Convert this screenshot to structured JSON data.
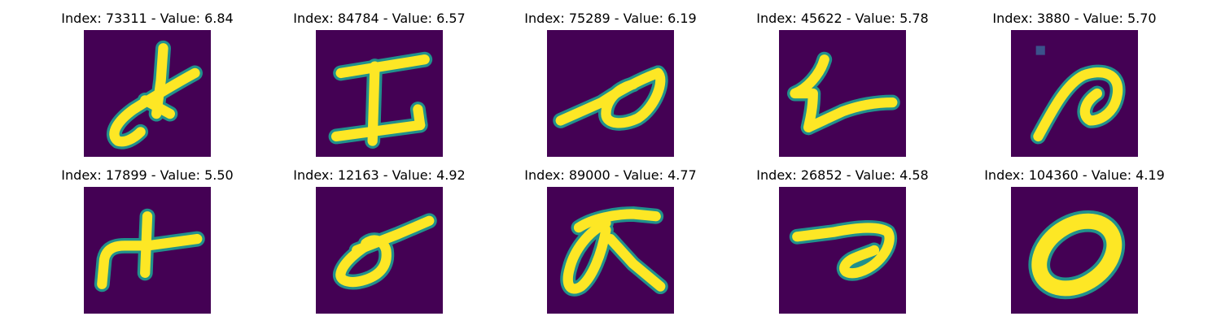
{
  "colors": {
    "background": "#440154",
    "stroke": "#fde725",
    "edge": "#21918c"
  },
  "panels": [
    {
      "title": "Index: 73311 - Value: 6.84",
      "glyph": "alpha-cross"
    },
    {
      "title": "Index: 84784 - Value: 6.57",
      "glyph": "capital-i"
    },
    {
      "title": "Index: 75289 - Value: 6.19",
      "glyph": "slanted-loop"
    },
    {
      "title": "Index: 45622 - Value: 5.78",
      "glyph": "stroke-l"
    },
    {
      "title": "Index: 3880 - Value: 5.70",
      "glyph": "a-hook"
    },
    {
      "title": "Index: 17899 - Value: 5.50",
      "glyph": "h-cross"
    },
    {
      "title": "Index: 12163 - Value: 4.92",
      "glyph": "o-bar"
    },
    {
      "title": "Index: 89000 - Value: 4.77",
      "glyph": "pi-loop"
    },
    {
      "title": "Index: 26852 - Value: 4.58",
      "glyph": "curl"
    },
    {
      "title": "Index: 104360 - Value: 4.19",
      "glyph": "oval-zero"
    }
  ]
}
